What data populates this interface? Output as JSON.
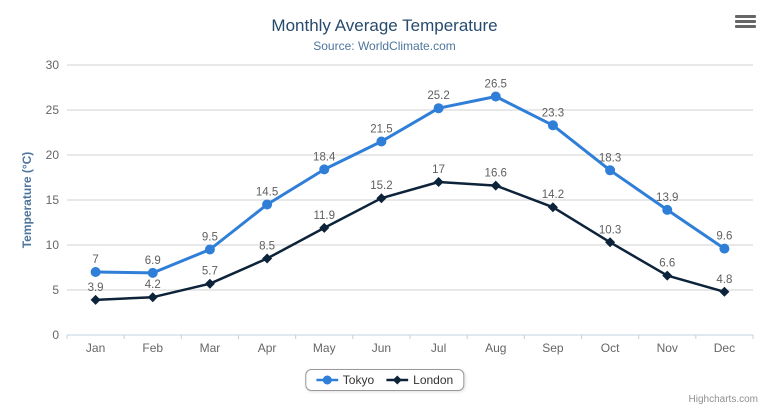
{
  "chart_data": {
    "type": "line",
    "title": "Monthly Average Temperature",
    "subtitle": "Source: WorldClimate.com",
    "xlabel": "",
    "ylabel": "Temperature (°C)",
    "categories": [
      "Jan",
      "Feb",
      "Mar",
      "Apr",
      "May",
      "Jun",
      "Jul",
      "Aug",
      "Sep",
      "Oct",
      "Nov",
      "Dec"
    ],
    "series": [
      {
        "name": "Tokyo",
        "color": "#2f7ed8",
        "marker": "circle",
        "values": [
          7,
          6.9,
          9.5,
          14.5,
          18.4,
          21.5,
          25.2,
          26.5,
          23.3,
          18.3,
          13.9,
          9.6
        ]
      },
      {
        "name": "London",
        "color": "#0d233a",
        "marker": "diamond",
        "values": [
          3.9,
          4.2,
          5.7,
          8.5,
          11.9,
          15.2,
          17,
          16.6,
          14.2,
          10.3,
          6.6,
          4.8
        ]
      }
    ],
    "ylim": [
      0,
      30
    ],
    "ytick_interval": 5,
    "grid": true,
    "data_labels": true,
    "legend_position": "bottom-center"
  },
  "colors": {
    "title": "#274b6d",
    "subtitle": "#4d759e",
    "axis_title": "#4d759e",
    "axis_label": "#666666",
    "data_label": "#606060",
    "grid": "#d0d0d0",
    "axis_line": "#c0d0e0",
    "legend_border": "#999999",
    "credits": "#909090",
    "menu_icon": "#666666"
  },
  "menu": {
    "icon": "hamburger-menu-icon"
  },
  "credits": {
    "text": "Highcharts.com"
  }
}
